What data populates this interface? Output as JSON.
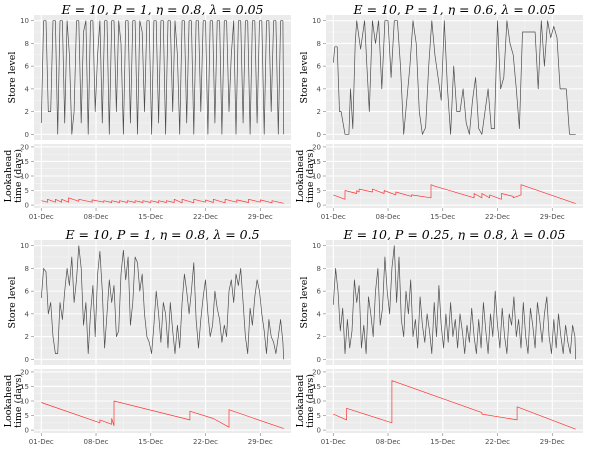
{
  "x_tick_labels": [
    "01-Dec",
    "08-Dec",
    "15-Dec",
    "22-Dec",
    "29-Dec"
  ],
  "y_label_store": "Store level",
  "y_label_lookahead": [
    "Lookahead",
    "time (days)"
  ],
  "chart_data": [
    {
      "type": "line",
      "title": "E = 10, P = 1, η = 0.8, λ = 0.05",
      "x_range_days": [
        0,
        31
      ],
      "store": {
        "ylim": [
          0,
          10
        ],
        "yticks": [
          0,
          2,
          4,
          6,
          8,
          10
        ],
        "x": [
          0,
          0.3,
          0.6,
          0.9,
          1.2,
          1.5,
          1.8,
          2.1,
          2.4,
          2.7,
          3,
          3.3,
          3.6,
          3.9,
          4.2,
          4.5,
          4.8,
          5.1,
          5.4,
          5.7,
          6,
          6.3,
          6.6,
          6.9,
          7.2,
          7.5,
          7.8,
          8.1,
          8.4,
          8.7,
          9,
          9.3,
          9.6,
          9.9,
          10.2,
          10.5,
          10.8,
          11.1,
          11.4,
          11.7,
          12,
          12.3,
          12.6,
          12.9,
          13.2,
          13.5,
          13.8,
          14.1,
          14.4,
          14.7,
          15,
          15.3,
          15.6,
          15.9,
          16.2,
          16.5,
          16.8,
          17.1,
          17.4,
          17.7,
          18,
          18.3,
          18.6,
          18.9,
          19.2,
          19.5,
          19.8,
          20.1,
          20.4,
          20.7,
          21,
          21.3,
          21.6,
          21.9,
          22.2,
          22.5,
          22.8,
          23.1,
          23.4,
          23.7,
          24,
          24.3,
          24.6,
          24.9,
          25.2,
          25.5,
          25.8,
          26.1,
          26.4,
          26.7,
          27,
          27.3,
          27.6,
          27.9,
          28.2,
          28.5,
          28.8,
          29.1,
          29.4,
          29.7,
          30,
          30.3,
          30.6,
          30.9,
          31
        ],
        "y": [
          1,
          10,
          10,
          2,
          2,
          10,
          10,
          0,
          10,
          10,
          1,
          10,
          7,
          0,
          2,
          10,
          10,
          1,
          9,
          10,
          0,
          10,
          10,
          2,
          7,
          10,
          1,
          10,
          10,
          0,
          10,
          10,
          2,
          10,
          8,
          0,
          10,
          10,
          1,
          10,
          10,
          0,
          10,
          9,
          2,
          10,
          10,
          0,
          10,
          10,
          1,
          10,
          10,
          0,
          10,
          10,
          2,
          10,
          7,
          0,
          10,
          10,
          1,
          10,
          10,
          0,
          10,
          10,
          2,
          10,
          10,
          0,
          10,
          10,
          1,
          10,
          10,
          0,
          10,
          10,
          2,
          7,
          10,
          0,
          10,
          10,
          1,
          10,
          10,
          0,
          10,
          10,
          1,
          10,
          10,
          0,
          10,
          10,
          2,
          10,
          10,
          0,
          10,
          10,
          0
        ]
      },
      "lookahead": {
        "ylim": [
          0,
          20
        ],
        "yticks": [
          0,
          5,
          10,
          15,
          20
        ],
        "x": [
          0,
          0.8,
          0.8,
          1.8,
          1.8,
          2.6,
          2.6,
          3.5,
          3.5,
          4.8,
          4.8,
          6.5,
          6.5,
          8,
          8,
          9,
          9,
          10,
          10,
          11,
          11,
          12,
          12,
          13,
          13,
          14,
          14,
          15,
          15,
          16,
          16,
          17,
          17,
          18,
          18,
          19.5,
          19.5,
          21,
          21,
          22,
          22,
          23.5,
          23.5,
          25,
          25,
          26.5,
          26.5,
          28,
          28,
          29.5,
          29.5,
          31
        ],
        "y": [
          1.5,
          1,
          2,
          1,
          2,
          1,
          2,
          1,
          2.5,
          1.3,
          2,
          1,
          1.8,
          1,
          1.5,
          0.9,
          1.5,
          0.9,
          1.5,
          0.9,
          1.5,
          0.9,
          1.5,
          0.9,
          1.5,
          0.9,
          1.5,
          0.9,
          1.5,
          0.9,
          1.5,
          0.9,
          2,
          0.8,
          2,
          0.8,
          2,
          1,
          1.8,
          0.9,
          2,
          0.8,
          2,
          1,
          1.8,
          0.9,
          2,
          1,
          1.8,
          0.8,
          1.5,
          0.6
        ]
      }
    },
    {
      "type": "line",
      "title": "E = 10, P = 1, η = 0.6, λ = 0.05",
      "x_range_days": [
        0,
        31
      ],
      "store": {
        "ylim": [
          0,
          10
        ],
        "yticks": [
          0,
          2,
          4,
          6,
          8,
          10
        ],
        "x": [
          0,
          0.2,
          0.5,
          0.8,
          1.0,
          1.5,
          2.0,
          2.2,
          2.5,
          2.8,
          3.0,
          3.5,
          4.0,
          4.3,
          4.6,
          5.0,
          5.4,
          5.8,
          6.2,
          6.6,
          7.0,
          7.4,
          7.8,
          8.2,
          8.6,
          9.0,
          9.4,
          9.8,
          10.2,
          10.6,
          11.0,
          11.4,
          11.8,
          12.2,
          12.6,
          13.0,
          13.4,
          13.8,
          14.2,
          14.6,
          15.0,
          15.4,
          15.8,
          16.2,
          16.6,
          17.0,
          17.4,
          17.8,
          18.2,
          18.6,
          19.0,
          19.4,
          19.8,
          20.2,
          20.6,
          21.0,
          21.4,
          21.8,
          22.2,
          22.6,
          23.0,
          23.4,
          23.8,
          24.2,
          24.6,
          25.0,
          25.4,
          25.8,
          26.2,
          26.6,
          27.0,
          27.4,
          27.8,
          28.2,
          28.6,
          29.0,
          29.4,
          29.8,
          30.2,
          30.6,
          31.0
        ],
        "y": [
          6.3,
          7.7,
          7.7,
          2,
          2,
          0,
          0,
          4,
          0.5,
          8,
          10,
          7.5,
          10,
          6,
          2,
          10,
          8,
          10,
          4,
          10,
          10,
          5,
          10,
          10,
          6,
          0,
          3,
          6,
          10,
          8,
          2,
          0,
          0.6,
          6,
          10,
          7,
          5,
          3,
          10,
          4,
          0,
          6,
          2,
          2,
          4,
          1,
          0,
          3,
          5,
          0.5,
          0,
          2,
          4,
          0.5,
          0.5,
          10,
          4,
          5,
          10,
          8,
          7,
          4,
          0.5,
          9,
          9,
          9,
          9,
          9,
          4,
          10,
          6,
          10,
          8.5,
          9.5,
          8.5,
          4,
          4,
          4,
          0,
          0,
          0
        ]
      },
      "lookahead": {
        "ylim": [
          0,
          20
        ],
        "yticks": [
          0,
          5,
          10,
          15,
          20
        ],
        "x": [
          0,
          1.5,
          1.5,
          3,
          3,
          3.3,
          3.3,
          5,
          5,
          6.5,
          6.5,
          8,
          8,
          10,
          10,
          12.5,
          12.5,
          13,
          13,
          18,
          18,
          19,
          19,
          20,
          20,
          21.5,
          21.5,
          23,
          23,
          24,
          24,
          31
        ],
        "y": [
          3.5,
          2,
          5,
          4,
          5,
          4.5,
          5.5,
          4.5,
          5.5,
          4,
          5,
          3.5,
          4.5,
          3,
          3.5,
          2.5,
          7,
          6.5,
          6.5,
          2.5,
          4,
          2.5,
          4,
          2.5,
          3.5,
          2,
          4,
          3,
          2.5,
          3.5,
          7,
          0.5
        ]
      }
    },
    {
      "type": "line",
      "title": "E = 10, P = 1, η = 0.8, λ = 0.5",
      "x_range_days": [
        0,
        31
      ],
      "store": {
        "ylim": [
          0,
          10
        ],
        "yticks": [
          0,
          2,
          4,
          6,
          8,
          10
        ],
        "x": [
          0,
          0.3,
          0.6,
          0.9,
          1.2,
          1.5,
          1.8,
          2.1,
          2.4,
          2.7,
          3,
          3.3,
          3.6,
          3.9,
          4.2,
          4.5,
          4.8,
          5.1,
          5.4,
          5.7,
          6,
          6.3,
          6.6,
          6.9,
          7.2,
          7.5,
          7.8,
          8.1,
          8.4,
          8.7,
          9,
          9.3,
          9.6,
          9.9,
          10.2,
          10.5,
          10.8,
          11.1,
          11.4,
          11.7,
          12,
          12.3,
          12.6,
          12.9,
          13.2,
          13.5,
          13.8,
          14.1,
          14.4,
          14.7,
          15,
          15.3,
          15.6,
          15.9,
          16.2,
          16.5,
          16.8,
          17.1,
          17.4,
          17.7,
          18,
          18.3,
          18.6,
          18.9,
          19.2,
          19.5,
          19.8,
          20.1,
          20.4,
          20.7,
          21,
          21.3,
          21.6,
          21.9,
          22.2,
          22.5,
          22.8,
          23.1,
          23.4,
          23.7,
          24,
          24.3,
          24.6,
          24.9,
          25.2,
          25.5,
          25.8,
          26.1,
          26.4,
          26.7,
          27,
          27.3,
          27.6,
          27.9,
          28.2,
          28.5,
          28.8,
          29.1,
          29.4,
          29.7,
          30,
          30.3,
          30.6,
          30.9,
          31
        ],
        "y": [
          5.4,
          8,
          7.7,
          4,
          5,
          2,
          0.5,
          0.5,
          5,
          3.5,
          6,
          8,
          6.5,
          9,
          5,
          7,
          10,
          8,
          3,
          5,
          0.5,
          4,
          6.5,
          2,
          7.5,
          9.5,
          6,
          1,
          4,
          7,
          5,
          6.5,
          2,
          2.5,
          7.5,
          9.6,
          7,
          9,
          3,
          5,
          9,
          8.5,
          6,
          7.5,
          4,
          2,
          1.5,
          0.5,
          3,
          6,
          4,
          1.5,
          5,
          4,
          1,
          5,
          2.5,
          0.5,
          3,
          1,
          5,
          7.5,
          6,
          4,
          6,
          8.5,
          3.5,
          1,
          3.5,
          5.5,
          7,
          4,
          2,
          3,
          6,
          4.5,
          3.5,
          1.5,
          3,
          2,
          6,
          7,
          5,
          7.5,
          6.5,
          8,
          5,
          2,
          0.5,
          4.5,
          3,
          5.5,
          7,
          6,
          4,
          2.5,
          0.5,
          3.5,
          2,
          1.5,
          0.5,
          2,
          3.5,
          1.5,
          0
        ]
      },
      "lookahead": {
        "ylim": [
          0,
          20
        ],
        "yticks": [
          0,
          5,
          10,
          15,
          20
        ],
        "x": [
          0,
          7.5,
          7.5,
          9,
          9,
          9.3,
          9.3,
          19,
          19,
          22,
          22,
          24,
          24,
          31
        ],
        "y": [
          9.5,
          2.5,
          3.5,
          2,
          4,
          1.5,
          10,
          3.5,
          6.5,
          4,
          4,
          1,
          7,
          0.5
        ]
      }
    },
    {
      "type": "line",
      "title": "E = 10, P = 0.25, η = 0.8, λ = 0.05",
      "x_range_days": [
        0,
        31
      ],
      "store": {
        "ylim": [
          0,
          10
        ],
        "yticks": [
          0,
          2,
          4,
          6,
          8,
          10
        ],
        "x": [
          0,
          0.3,
          0.6,
          0.9,
          1.2,
          1.5,
          1.8,
          2.1,
          2.4,
          2.7,
          3,
          3.3,
          3.6,
          3.9,
          4.2,
          4.5,
          4.8,
          5.1,
          5.4,
          5.7,
          6,
          6.3,
          6.6,
          6.9,
          7.2,
          7.5,
          7.8,
          8.1,
          8.4,
          8.7,
          9,
          9.3,
          9.6,
          9.9,
          10.2,
          10.5,
          10.8,
          11.1,
          11.4,
          11.7,
          12,
          12.3,
          12.6,
          12.9,
          13.2,
          13.5,
          13.8,
          14.1,
          14.4,
          14.7,
          15,
          15.3,
          15.6,
          15.9,
          16.2,
          16.5,
          16.8,
          17.1,
          17.4,
          17.7,
          18,
          18.3,
          18.6,
          18.9,
          19.2,
          19.5,
          19.8,
          20.1,
          20.4,
          20.7,
          21,
          21.3,
          21.6,
          21.9,
          22.2,
          22.5,
          22.8,
          23.1,
          23.4,
          23.7,
          24,
          24.3,
          24.6,
          24.9,
          25.2,
          25.5,
          25.8,
          26.1,
          26.4,
          26.7,
          27,
          27.3,
          27.6,
          27.9,
          28.2,
          28.5,
          28.8,
          29.1,
          29.4,
          29.7,
          30,
          30.3,
          30.6,
          30.9,
          31
        ],
        "y": [
          4.8,
          8,
          6,
          2.5,
          4.5,
          0.5,
          3.5,
          1,
          2.5,
          7,
          5,
          6.5,
          1,
          3,
          0.5,
          5.5,
          4,
          2,
          6,
          8,
          3,
          4.5,
          9,
          6,
          4,
          8,
          10,
          5,
          9,
          3.5,
          2,
          6,
          4,
          7,
          2,
          3.5,
          1,
          5.5,
          3,
          1.5,
          4,
          2.5,
          0.5,
          5,
          2,
          6.5,
          3,
          1,
          4,
          1.5,
          5,
          2,
          3.5,
          1,
          4,
          2.5,
          0.5,
          3,
          1.5,
          4.5,
          2,
          0.5,
          3.5,
          1,
          5,
          2.5,
          0.5,
          4,
          2,
          6,
          3,
          1,
          4.5,
          2,
          0.5,
          4,
          3,
          5.5,
          2,
          3.5,
          1,
          5,
          2,
          0.5,
          4.5,
          3,
          1,
          5,
          3.5,
          1.5,
          4,
          5.5,
          2,
          0.5,
          3.5,
          1,
          4,
          2,
          0.5,
          3,
          1.5,
          0.5,
          3,
          2,
          0
        ]
      },
      "lookahead": {
        "ylim": [
          0,
          20
        ],
        "yticks": [
          0,
          5,
          10,
          15,
          20
        ],
        "x": [
          0,
          1.7,
          1.7,
          7.5,
          7.5,
          19,
          19,
          23.5,
          23.5,
          31
        ],
        "y": [
          5.5,
          3.5,
          7.5,
          2.5,
          17,
          6,
          5.5,
          3.5,
          8,
          0.3
        ]
      }
    }
  ]
}
